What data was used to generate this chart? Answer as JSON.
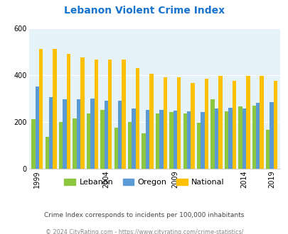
{
  "title": "Lebanon Violent Crime Index",
  "years_data": {
    "1999": [
      210,
      350,
      510
    ],
    "2000": [
      135,
      305,
      510
    ],
    "2001": [
      200,
      295,
      490
    ],
    "2002": [
      215,
      295,
      475
    ],
    "2003": [
      235,
      300,
      465
    ],
    "2004": [
      250,
      290,
      465
    ],
    "2005": [
      175,
      290,
      465
    ],
    "2006": [
      200,
      255,
      430
    ],
    "2007": [
      150,
      250,
      405
    ],
    "2008": [
      235,
      250,
      390
    ],
    "2009": [
      240,
      248,
      390
    ],
    "2010": [
      235,
      245,
      365
    ],
    "2011": [
      195,
      240,
      385
    ],
    "2012": [
      295,
      255,
      395
    ],
    "2013": [
      245,
      260,
      375
    ],
    "2014": [
      265,
      255,
      395
    ],
    "2015": [
      270,
      280,
      395
    ],
    "2019": [
      165,
      285,
      375
    ]
  },
  "lebanon_color": "#8dc63f",
  "oregon_color": "#5b9bd5",
  "national_color": "#ffc000",
  "bg_color": "#e5f2f7",
  "title_color": "#1874CD",
  "subtitle_color": "#444444",
  "footer_color": "#888888",
  "subtitle": "Crime Index corresponds to incidents per 100,000 inhabitants",
  "footer": "© 2024 CityRating.com - https://www.cityrating.com/crime-statistics/",
  "ylim": [
    0,
    600
  ],
  "yticks": [
    0,
    200,
    400,
    600
  ],
  "xtick_label_years": [
    1999,
    2004,
    2009,
    2014,
    2019
  ]
}
